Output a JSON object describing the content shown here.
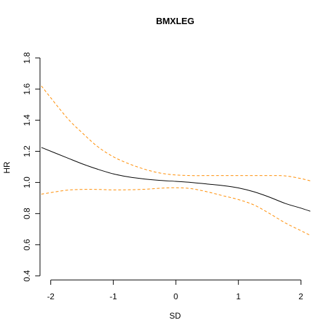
{
  "chart_data": {
    "type": "line",
    "title": "BMXLEG",
    "xlabel": "SD",
    "ylabel": "HR",
    "xlim": [
      -2.15,
      2.15
    ],
    "ylim": [
      0.4,
      1.8
    ],
    "x_ticks": [
      -2,
      -1,
      0,
      1,
      2
    ],
    "x_tick_labels": [
      "-2",
      "-1",
      "0",
      "1",
      "2"
    ],
    "y_ticks": [
      0.4,
      0.6,
      0.8,
      1.0,
      1.2,
      1.4,
      1.6,
      1.8
    ],
    "y_tick_labels": [
      "0.4",
      "0.6",
      "0.8",
      "1.0",
      "1.2",
      "1.4",
      "1.6",
      "1.8"
    ],
    "grid": false,
    "legend": "none",
    "series": [
      {
        "role": "estimate",
        "color": "#000000",
        "line_style": "solid",
        "x": [
          -2.15,
          -1.75,
          -1.5,
          -1.25,
          -1.0,
          -0.75,
          -0.5,
          -0.25,
          0.0,
          0.25,
          0.5,
          0.75,
          1.0,
          1.25,
          1.5,
          1.75,
          2.0,
          2.15
        ],
        "y": [
          1.225,
          1.16,
          1.12,
          1.085,
          1.055,
          1.035,
          1.022,
          1.013,
          1.007,
          1.0,
          0.99,
          0.98,
          0.965,
          0.94,
          0.905,
          0.865,
          0.835,
          0.815
        ]
      },
      {
        "role": "upper-ci",
        "color": "#ff8c00",
        "line_style": "dashed",
        "x": [
          -2.15,
          -1.75,
          -1.5,
          -1.25,
          -1.0,
          -0.75,
          -0.5,
          -0.25,
          0.0,
          0.25,
          0.5,
          0.75,
          1.0,
          1.25,
          1.5,
          1.75,
          2.0,
          2.15
        ],
        "y": [
          1.62,
          1.42,
          1.32,
          1.23,
          1.165,
          1.12,
          1.085,
          1.06,
          1.048,
          1.044,
          1.044,
          1.044,
          1.044,
          1.044,
          1.044,
          1.042,
          1.025,
          1.01
        ]
      },
      {
        "role": "lower-ci",
        "color": "#ff8c00",
        "line_style": "dashed",
        "x": [
          -2.15,
          -1.75,
          -1.5,
          -1.25,
          -1.0,
          -0.75,
          -0.5,
          -0.25,
          0.0,
          0.25,
          0.5,
          0.75,
          1.0,
          1.25,
          1.5,
          1.75,
          2.0,
          2.15
        ],
        "y": [
          0.925,
          0.95,
          0.955,
          0.955,
          0.952,
          0.953,
          0.956,
          0.963,
          0.966,
          0.96,
          0.94,
          0.915,
          0.89,
          0.855,
          0.8,
          0.74,
          0.69,
          0.66
        ]
      }
    ]
  }
}
